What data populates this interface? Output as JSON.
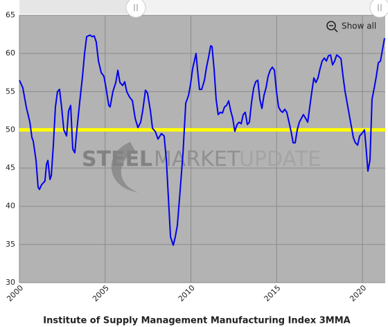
{
  "chart_data": {
    "type": "line",
    "title": "Institute of Supply Management Manufacturing Index 3MMA",
    "watermark": [
      "STEEL",
      "MARKET",
      "UPDATE"
    ],
    "reset_button": "Show all",
    "xlim": [
      2000,
      2021.33
    ],
    "xticks": [
      2000,
      2005,
      2010,
      2015,
      2020
    ],
    "ylim": [
      30,
      65
    ],
    "yticks": [
      30,
      35,
      40,
      45,
      50,
      55,
      60,
      65
    ],
    "grid": true,
    "reference_line": {
      "value": 50,
      "color": "#ffff00"
    },
    "x": [
      2000,
      2000.2,
      2000.4,
      2000.61,
      2000.73,
      2000.81,
      2000.97,
      2001.09,
      2001.17,
      2001.29,
      2001.49,
      2001.58,
      2001.66,
      2001.78,
      2001.86,
      2001.98,
      2002.1,
      2002.22,
      2002.34,
      2002.46,
      2002.59,
      2002.75,
      2002.87,
      2002.99,
      2003.11,
      2003.23,
      2003.35,
      2003.51,
      2003.68,
      2003.8,
      2003.92,
      2004.12,
      2004.24,
      2004.36,
      2004.48,
      2004.61,
      2004.77,
      2004.93,
      2005.05,
      2005.21,
      2005.29,
      2005.45,
      2005.62,
      2005.74,
      2005.86,
      2006.02,
      2006.14,
      2006.26,
      2006.42,
      2006.59,
      2006.75,
      2006.91,
      2007.07,
      2007.19,
      2007.35,
      2007.47,
      2007.64,
      2007.76,
      2007.92,
      2008.08,
      2008.28,
      2008.44,
      2008.57,
      2008.69,
      2008.81,
      2008.97,
      2009.09,
      2009.21,
      2009.37,
      2009.54,
      2009.7,
      2009.86,
      2009.98,
      2010.1,
      2010.22,
      2010.3,
      2010.38,
      2010.5,
      2010.63,
      2010.79,
      2010.91,
      2011.03,
      2011.15,
      2011.23,
      2011.35,
      2011.47,
      2011.59,
      2011.72,
      2011.84,
      2011.96,
      2012.08,
      2012.2,
      2012.32,
      2012.44,
      2012.56,
      2012.69,
      2012.81,
      2012.93,
      2013.05,
      2013.17,
      2013.29,
      2013.41,
      2013.53,
      2013.66,
      2013.78,
      2013.9,
      2014.02,
      2014.14,
      2014.26,
      2014.38,
      2014.5,
      2014.62,
      2014.75,
      2014.87,
      2014.99,
      2015.11,
      2015.23,
      2015.35,
      2015.47,
      2015.59,
      2015.72,
      2015.84,
      2015.96,
      2016.08,
      2016.2,
      2016.32,
      2016.44,
      2016.56,
      2016.69,
      2016.81,
      2016.93,
      2017.05,
      2017.17,
      2017.29,
      2017.41,
      2017.53,
      2017.65,
      2017.78,
      2017.9,
      2018.02,
      2018.14,
      2018.26,
      2018.38,
      2018.5,
      2018.62,
      2018.75,
      2018.87,
      2018.99,
      2019.11,
      2019.23,
      2019.35,
      2019.47,
      2019.59,
      2019.72,
      2019.84,
      2019.96,
      2020.12,
      2020.2,
      2020.32,
      2020.44,
      2020.56,
      2020.69,
      2020.81,
      2020.93,
      2021.05,
      2021.17,
      2021.29
    ],
    "series": [
      {
        "name": "ISM Manufacturing Index 3MMA",
        "color": "#0000ee",
        "values": [
          56.5,
          55.5,
          53,
          51,
          49,
          48.5,
          46,
          42.5,
          42.2,
          42.8,
          43.3,
          45.5,
          46,
          43.5,
          44,
          48,
          53,
          55,
          55.3,
          53,
          50,
          49.2,
          52.5,
          53.2,
          47.5,
          47,
          50,
          53.5,
          57,
          60,
          62.2,
          62.4,
          62.2,
          62.3,
          61.5,
          59,
          57.5,
          57,
          55.5,
          53.2,
          53,
          55,
          56.2,
          57.8,
          56.2,
          55.8,
          56.3,
          55,
          54.3,
          53.8,
          51.5,
          50.3,
          51,
          52.5,
          55.2,
          54.8,
          52.5,
          50.2,
          49.8,
          48.8,
          49.5,
          49.2,
          46,
          41,
          36,
          34.9,
          36,
          37.5,
          42,
          47,
          53.5,
          54.5,
          56,
          58,
          59.2,
          60,
          58,
          55.3,
          55.3,
          56.5,
          58.2,
          59.5,
          61,
          60.9,
          58,
          54,
          52,
          52.3,
          52.2,
          53,
          53.2,
          53.8,
          52.5,
          51.5,
          49.8,
          50.7,
          51,
          50.8,
          52,
          52.3,
          50.7,
          51,
          53.5,
          55.5,
          56.3,
          56.5,
          54,
          52.8,
          54.5,
          55.5,
          57,
          57.8,
          58.2,
          57.8,
          55,
          53,
          52.5,
          52.3,
          52.7,
          52.3,
          51,
          49.8,
          48.3,
          48.3,
          50,
          51,
          51.5,
          52,
          51.5,
          51,
          53,
          55,
          56.8,
          56.2,
          56.8,
          58,
          59,
          59.4,
          59,
          59.7,
          59.8,
          58.5,
          59,
          59.8,
          59.6,
          59.3,
          57,
          55,
          53.5,
          52,
          50.5,
          49,
          48.3,
          48,
          49.2,
          49.5,
          50,
          48,
          44.6,
          46,
          54,
          55.5,
          57,
          58.8,
          59,
          60.5,
          62
        ]
      }
    ]
  }
}
